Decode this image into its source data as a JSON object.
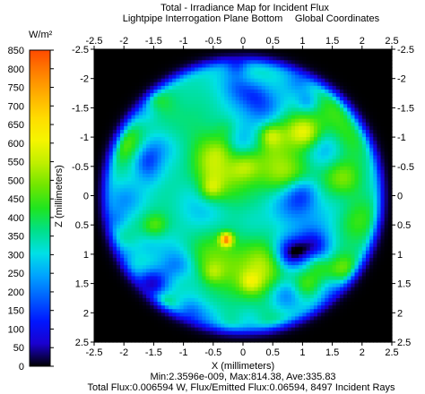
{
  "chart_data": {
    "type": "heatmap",
    "title": "Total - Irradiance Map for Incident Flux",
    "subtitle_left": "Lightpipe Interrogation Plane Bottom",
    "subtitle_right": "Global Coordinates",
    "xlabel": "X (millimeters)",
    "ylabel": "Z (millimeters)",
    "xlim": [
      -2.5,
      2.5
    ],
    "ylim": [
      -2.5,
      2.5
    ],
    "x_ticks": [
      "-2.5",
      "-2",
      "-1.5",
      "-1",
      "-0.5",
      "0",
      "0.5",
      "1",
      "1.5",
      "2",
      "2.5"
    ],
    "y_ticks": [
      "-2.5",
      "-2",
      "-1.5",
      "-1",
      "-0.5",
      "0",
      "0.5",
      "1",
      "1.5",
      "2",
      "2.5"
    ],
    "colorbar": {
      "unit": "W/m²",
      "min": 0,
      "max": 850,
      "ticks": [
        "0",
        "50",
        "100",
        "150",
        "200",
        "250",
        "300",
        "350",
        "400",
        "450",
        "500",
        "550",
        "600",
        "650",
        "700",
        "750",
        "800",
        "850"
      ],
      "colors": [
        "#000000",
        "#1a00cf",
        "#0017ff",
        "#005dff",
        "#00a2ff",
        "#00e0e6",
        "#00e08a",
        "#1fe51f",
        "#70e600",
        "#bfef00",
        "#f5f500",
        "#ffdc00",
        "#ffb000",
        "#ff8000",
        "#ff4a00"
      ]
    },
    "spot": {
      "center": [
        0,
        0
      ],
      "radius": 2.3,
      "mean_level": 335.83,
      "peak_level": 814.38,
      "peak_location": [
        -0.28,
        0.75
      ]
    },
    "stats_line1": "Min:2.3596e-009, Max:814.38, Ave:335.83",
    "stats_line2": "Total Flux:0.006594 W, Flux/Emitted Flux:0.06594, 8497 Incident Rays"
  }
}
